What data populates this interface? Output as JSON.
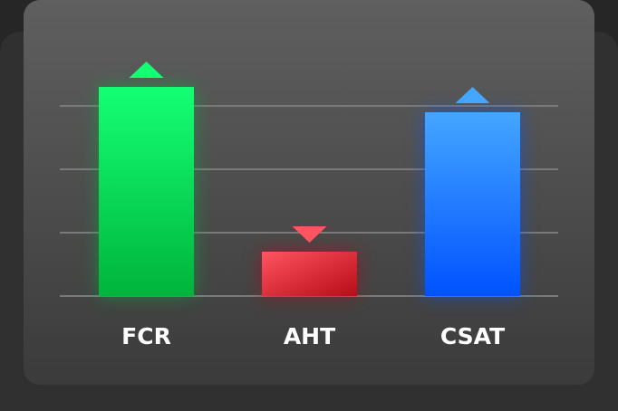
{
  "chart_data": {
    "type": "bar",
    "categories": [
      "FCR",
      "AHT",
      "CSAT"
    ],
    "values": [
      3.3,
      0.7,
      2.9
    ],
    "directions": [
      "up",
      "down",
      "up"
    ],
    "colors": [
      [
        "#14ff74",
        "#00b43c"
      ],
      [
        "#ff5560",
        "#b80c18"
      ],
      [
        "#45a6ff",
        "#0052ff"
      ]
    ],
    "ylim": [
      0,
      3.3
    ],
    "yticks": [
      0,
      1,
      2,
      3
    ],
    "grid": true
  }
}
